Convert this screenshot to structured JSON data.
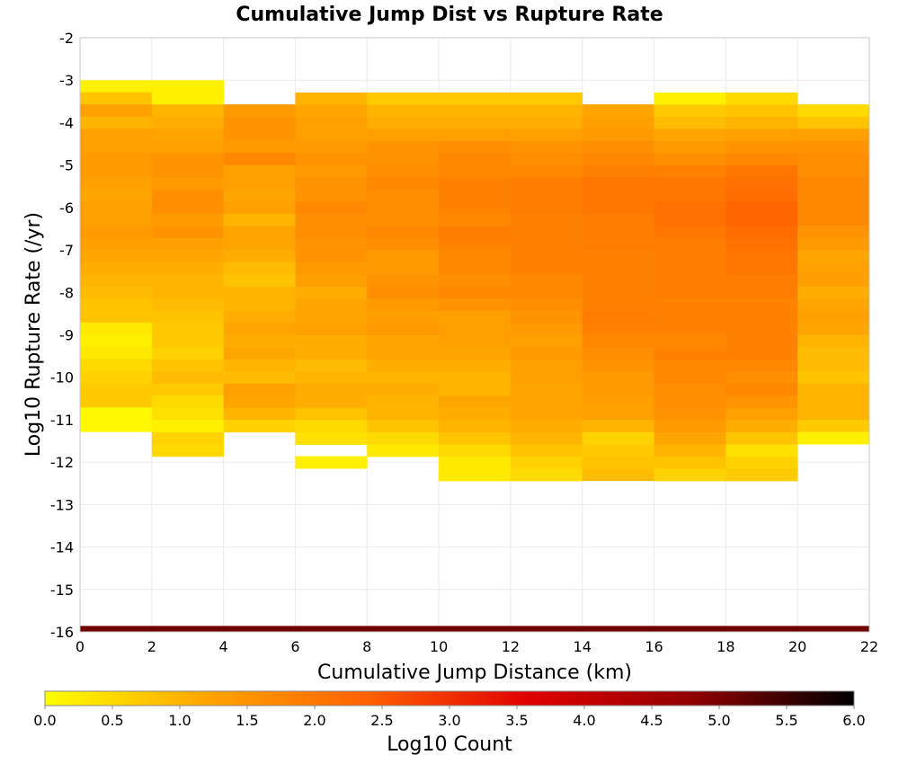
{
  "chart_data": {
    "type": "heatmap",
    "title": "Cumulative Jump Dist vs Rupture Rate",
    "xlabel": "Cumulative Jump Distance (km)",
    "ylabel": "Log10 Rupture Rate (/yr)",
    "colorbar_label": "Log10 Count",
    "xlim": [
      0,
      22
    ],
    "ylim": [
      -16,
      -2
    ],
    "xticks": [
      "0",
      "2",
      "4",
      "6",
      "8",
      "10",
      "12",
      "14",
      "16",
      "18",
      "20",
      "22"
    ],
    "yticks": [
      "-2",
      "-3",
      "-4",
      "-5",
      "-6",
      "-7",
      "-8",
      "-9",
      "-10",
      "-11",
      "-12",
      "-13",
      "-14",
      "-15",
      "-16"
    ],
    "colorbar_range": [
      0,
      6
    ],
    "colorbar_ticks": [
      "0.0",
      "0.5",
      "1.0",
      "1.5",
      "2.0",
      "2.5",
      "3.0",
      "3.5",
      "4.0",
      "4.5",
      "5.0",
      "5.5",
      "6.0"
    ],
    "colorscale": [
      "#ffff00",
      "#ffa500",
      "#ff6000",
      "#e00000",
      "#900000",
      "#000000"
    ],
    "grid": true,
    "x_bin_width": 2,
    "y_bin_height": 0.286,
    "bins": [
      {
        "x": 0,
        "y_start": -3.0,
        "values": [
          0.2,
          0.8,
          1.3,
          1.0,
          1.3,
          1.3,
          1.4,
          1.4,
          1.3,
          1.2,
          1.3,
          1.3,
          1.4,
          1.3,
          1.2,
          1.1,
          1.0,
          0.9,
          0.8,
          0.8,
          0.7,
          0.6,
          0.7,
          0.8,
          1.0,
          1.1,
          1.1
        ]
      },
      {
        "x": 0,
        "y_start": -8.71,
        "values": [
          0.3,
          0.2,
          0.3,
          0.5,
          0.6,
          0.7,
          0.7
        ]
      },
      {
        "x": 0,
        "y_start": -10.71,
        "values": [
          0.1,
          0.1
        ]
      },
      {
        "x": 2,
        "y_start": -3.0,
        "values": [
          0.2,
          0.2,
          1.0,
          1.1,
          1.2,
          1.3,
          1.5,
          1.5,
          1.4,
          1.6,
          1.6,
          1.4,
          1.5,
          1.3,
          1.2,
          1.1,
          1.0,
          1.0,
          0.9,
          0.8,
          0.7,
          0.7,
          0.6,
          0.8,
          0.9,
          0.7,
          0.5,
          0.4,
          0.2,
          0.6,
          0.5
        ]
      },
      {
        "x": 4,
        "y_start": -3.57,
        "values": [
          1.4,
          1.5,
          1.5,
          1.4,
          1.7,
          1.3,
          1.3,
          1.2,
          1.3,
          1.0,
          1.2,
          1.2,
          1.1,
          0.9,
          0.8,
          1.0,
          1.0,
          1.1,
          1.2,
          1.1,
          1.2,
          1.0,
          0.9,
          1.3,
          1.2,
          1.0,
          0.6
        ]
      },
      {
        "x": 6,
        "y_start": -3.29,
        "values": [
          1.0,
          1.2,
          1.3,
          1.3,
          1.4,
          1.5,
          1.4,
          1.5,
          1.5,
          1.7,
          1.6,
          1.6,
          1.5,
          1.5,
          1.4,
          1.3,
          1.1,
          1.2,
          1.2,
          1.3,
          1.1,
          1.1,
          0.9,
          1.0,
          1.1,
          1.1,
          0.8,
          0.5,
          0.4
        ]
      },
      {
        "x": 6,
        "y_start": -11.86,
        "values": [
          0.2
        ]
      },
      {
        "x": 8,
        "y_start": -3.29,
        "values": [
          0.7,
          1.0,
          1.1,
          1.3,
          1.5,
          1.5,
          1.6,
          1.7,
          1.6,
          1.6,
          1.6,
          1.7,
          1.6,
          1.4,
          1.4,
          1.5,
          1.6,
          1.4,
          1.3,
          1.4,
          1.2,
          1.2,
          1.1,
          1.0,
          1.1,
          1.0,
          1.0,
          0.8,
          0.5,
          0.3
        ]
      },
      {
        "x": 10,
        "y_start": -3.29,
        "values": [
          0.7,
          1.0,
          1.1,
          1.3,
          1.6,
          1.7,
          1.7,
          1.8,
          1.8,
          1.8,
          1.7,
          1.9,
          1.8,
          1.7,
          1.7,
          1.6,
          1.7,
          1.5,
          1.3,
          1.3,
          1.3,
          1.2,
          1.1,
          1.0,
          1.0,
          1.2,
          1.1,
          1.0,
          0.8,
          0.5,
          0.3,
          0.3
        ]
      },
      {
        "x": 12,
        "y_start": -3.29,
        "values": [
          0.7,
          1.0,
          1.1,
          1.3,
          1.5,
          1.6,
          1.7,
          1.9,
          1.9,
          1.9,
          1.8,
          1.8,
          1.8,
          1.8,
          1.8,
          1.7,
          1.7,
          1.6,
          1.5,
          1.4,
          1.3,
          1.4,
          1.3,
          1.3,
          1.2,
          1.2,
          1.2,
          1.1,
          1.0,
          0.8,
          0.6,
          0.5
        ]
      },
      {
        "x": 14,
        "y_start": -3.57,
        "values": [
          1.2,
          1.3,
          1.4,
          1.6,
          1.7,
          1.8,
          2.0,
          2.0,
          2.0,
          1.9,
          1.9,
          1.9,
          1.8,
          1.8,
          1.8,
          1.8,
          1.8,
          1.9,
          1.8,
          1.7,
          1.6,
          1.5,
          1.4,
          1.4,
          1.3,
          1.3,
          1.0,
          0.6,
          0.7,
          0.8,
          0.9
        ]
      },
      {
        "x": 16,
        "y_start": -3.29,
        "values": [
          0.2,
          0.7,
          0.9,
          1.2,
          1.4,
          1.6,
          1.8,
          2.0,
          2.0,
          2.1,
          2.1,
          2.0,
          1.9,
          1.9,
          1.9,
          1.9,
          1.9,
          1.8,
          1.8,
          1.8,
          1.7,
          1.8,
          1.7,
          1.7,
          1.6,
          1.6,
          1.5,
          1.4,
          1.2,
          1.0,
          0.8,
          0.6
        ]
      },
      {
        "x": 18,
        "y_start": -3.29,
        "values": [
          0.5,
          0.8,
          1.0,
          1.3,
          1.5,
          1.7,
          2.0,
          2.1,
          2.2,
          2.3,
          2.3,
          2.2,
          2.1,
          2.0,
          2.0,
          1.9,
          1.9,
          1.8,
          1.8,
          1.8,
          1.8,
          1.8,
          1.7,
          1.6,
          1.7,
          1.5,
          1.3,
          1.1,
          0.8,
          0.4,
          0.6,
          0.7
        ]
      },
      {
        "x": 20,
        "y_start": -3.57,
        "values": [
          0.5,
          0.8,
          1.3,
          1.5,
          1.6,
          1.6,
          1.7,
          1.7,
          1.7,
          1.7,
          1.5,
          1.4,
          1.2,
          1.3,
          1.3,
          1.1,
          1.2,
          1.3,
          1.2,
          1.0,
          0.9,
          0.9,
          0.8,
          1.0,
          1.0,
          1.0,
          0.7
        ]
      },
      {
        "x": 20,
        "y_start": -11.29,
        "values": [
          0.2
        ]
      }
    ],
    "bottom_row": {
      "y_start": -16.0,
      "y_end": -15.86,
      "color": "#6e0000"
    }
  }
}
